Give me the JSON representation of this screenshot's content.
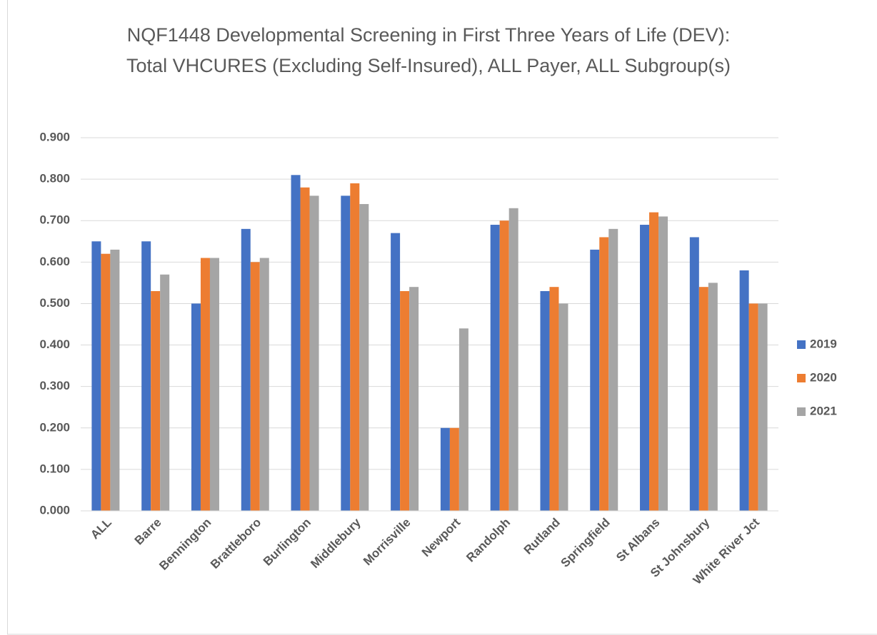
{
  "chart_data": {
    "type": "bar",
    "title": "NQF1448 Developmental Screening in First Three Years of Life (DEV): Total VHCURES (Excluding Self-Insured), ALL Payer, ALL Subgroup(s)",
    "categories": [
      "ALL",
      "Barre",
      "Bennington",
      "Brattleboro",
      "Burlington",
      "Middlebury",
      "Morrisville",
      "Newport",
      "Randolph",
      "Rutland",
      "Springfield",
      "St Albans",
      "St Johnsbury",
      "White River Jct"
    ],
    "series": [
      {
        "name": "2019",
        "color": "#4472c4",
        "values": [
          0.65,
          0.65,
          0.5,
          0.68,
          0.81,
          0.76,
          0.67,
          0.2,
          0.69,
          0.53,
          0.63,
          0.69,
          0.66,
          0.58
        ]
      },
      {
        "name": "2020",
        "color": "#ed7d31",
        "values": [
          0.62,
          0.53,
          0.61,
          0.6,
          0.78,
          0.79,
          0.53,
          0.2,
          0.7,
          0.54,
          0.66,
          0.72,
          0.54,
          0.5
        ]
      },
      {
        "name": "2021",
        "color": "#a5a5a5",
        "values": [
          0.63,
          0.57,
          0.61,
          0.61,
          0.76,
          0.74,
          0.54,
          0.44,
          0.73,
          0.5,
          0.68,
          0.71,
          0.55,
          0.5
        ]
      }
    ],
    "ylim": [
      0,
      0.9
    ],
    "yticks": [
      {
        "value": 0,
        "label": "0.000"
      },
      {
        "value": 0.1,
        "label": "0.100"
      },
      {
        "value": 0.2,
        "label": "0.200"
      },
      {
        "value": 0.3,
        "label": "0.300"
      },
      {
        "value": 0.4,
        "label": "0.400"
      },
      {
        "value": 0.5,
        "label": "0.500"
      },
      {
        "value": 0.6,
        "label": "0.600"
      },
      {
        "value": 0.7,
        "label": "0.700"
      },
      {
        "value": 0.8,
        "label": "0.800"
      },
      {
        "value": 0.9,
        "label": "0.900"
      }
    ],
    "grid": true,
    "legend": "right"
  }
}
